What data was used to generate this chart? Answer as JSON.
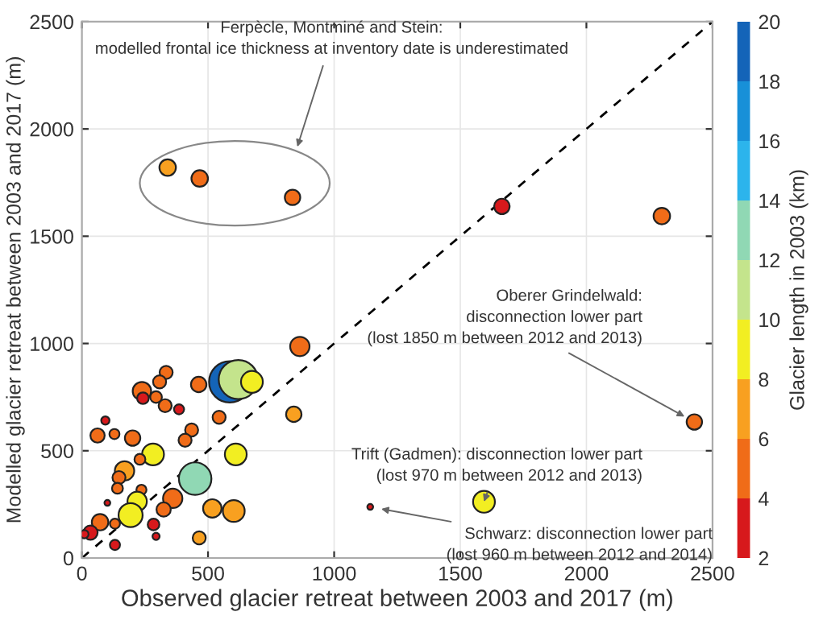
{
  "chart_data": {
    "type": "bubble",
    "xlabel": "Observed glacier retreat between 2003 and 2017 (m)",
    "ylabel": "Modelled glacier retreat between 2003 and 2017 (m)",
    "clabel": "Glacier length in 2003 (km)",
    "xlim": [
      0,
      2500
    ],
    "xticks": [
      0,
      500,
      1000,
      1500,
      2000,
      2500
    ],
    "ylim": [
      0,
      2500
    ],
    "yticks": [
      0,
      500,
      1000,
      1500,
      2000,
      2500
    ],
    "clim": [
      2,
      20
    ],
    "cticks": [
      2,
      4,
      6,
      8,
      10,
      12,
      14,
      16,
      18,
      20
    ],
    "grid": true,
    "legend": false,
    "series": [
      {
        "x": [
          340,
          467,
          835,
          1665,
          2299,
          2428,
          1594,
          1143,
          864,
          840,
          586,
          620,
          674,
          463,
          334,
          308,
          238,
          242,
          294,
          330,
          385,
          93,
          62,
          129,
          201,
          435,
          409,
          544,
          610,
          282,
          230,
          169,
          147,
          141,
          449,
          360,
          324,
          236,
          219,
          193,
          101,
          72,
          131,
          284,
          294,
          34,
          10,
          131,
          465,
          517,
          602
        ],
        "values": [
          1820,
          1769,
          1681,
          1639,
          1594,
          634,
          262,
          238,
          986,
          670,
          821,
          832,
          821,
          809,
          865,
          821,
          778,
          745,
          750,
          710,
          693,
          641,
          571,
          578,
          559,
          597,
          549,
          656,
          483,
          483,
          460,
          406,
          375,
          325,
          370,
          278,
          226,
          318,
          264,
          200,
          257,
          167,
          160,
          156,
          101,
          118,
          111,
          61,
          94,
          231,
          219
        ],
        "colors": [
          "#f8a020",
          "#f06c18",
          "#f06c18",
          "#d7191c",
          "#f06c18",
          "#f06c18",
          "#f2ee22",
          "#d7191c",
          "#f06c18",
          "#f8a020",
          "#1464b8",
          "#c4e48c",
          "#f2ee22",
          "#f06c18",
          "#f06c18",
          "#f06c18",
          "#f06c18",
          "#d7191c",
          "#f06c18",
          "#f06c18",
          "#d7191c",
          "#d7191c",
          "#f06c18",
          "#f06c18",
          "#f06c18",
          "#f06c18",
          "#f06c18",
          "#f06c18",
          "#f2ee22",
          "#f2ee22",
          "#f06c18",
          "#f8a020",
          "#f06c18",
          "#f06c18",
          "#90d8b4",
          "#f06c18",
          "#f06c18",
          "#f06c18",
          "#f2ee22",
          "#f2ee22",
          "#d7191c",
          "#f06c18",
          "#f06c18",
          "#d7191c",
          "#d7191c",
          "#d7191c",
          "#d7191c",
          "#d7191c",
          "#f8a020",
          "#f8a020",
          "#f8a020"
        ],
        "sizes": [
          0.16,
          0.16,
          0.14,
          0.14,
          0.16,
          0.14,
          0.28,
          0.02,
          0.22,
          0.14,
          1,
          0.9,
          0.28,
          0.14,
          0.1,
          0.1,
          0.2,
          0.08,
          0.08,
          0.1,
          0.06,
          0.04,
          0.12,
          0.06,
          0.14,
          0.1,
          0.1,
          0.1,
          0.28,
          0.28,
          0.07,
          0.22,
          0.1,
          0.07,
          0.62,
          0.22,
          0.12,
          0.06,
          0.22,
          0.34,
          0.02,
          0.16,
          0.06,
          0.08,
          0.03,
          0.12,
          0.04,
          0.06,
          0.1,
          0.2,
          0.28
        ]
      },
      {
        "type": "line",
        "x": [
          0,
          2500
        ],
        "values": [
          0,
          2500
        ],
        "color": "#000000",
        "line_style": "dashed"
      }
    ],
    "annotations": [
      "Ferpècle, Montminé and Stein:\nmodelled frontal ice thickness at inventory date is underestimated",
      {
        "text": "Oberer Grindelwald:\ndisconnection lower part\n(lost 1850 m between 2012 and 2013)",
        "x": 2428,
        "y": 634
      },
      {
        "text": "Trift (Gadmen): disconnection lower part\n(lost 970 m between 2012 and 2013)",
        "x": 1594,
        "y": 262
      },
      {
        "text": "Schwarz: disconnection lower part\n(lost 960 m between 2012 and 2014)",
        "x": 1143,
        "y": 238
      }
    ]
  }
}
